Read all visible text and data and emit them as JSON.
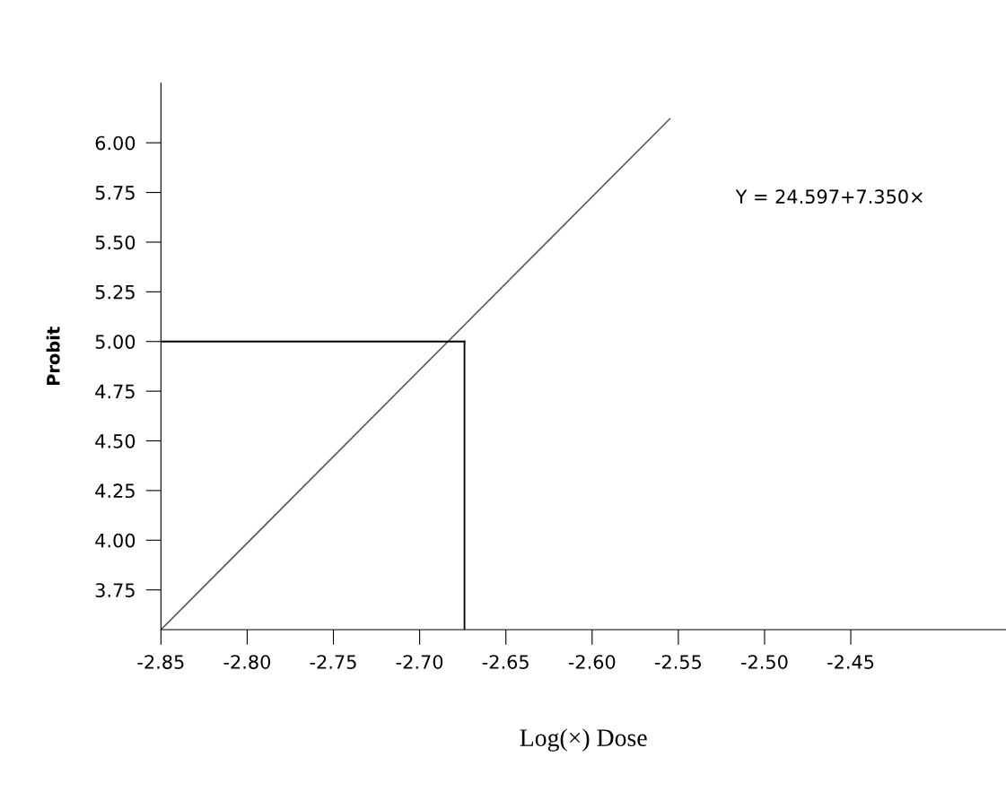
{
  "chart_data": {
    "type": "line",
    "xlabel": "Log(×) Dose",
    "ylabel": "Probit",
    "x": [
      -2.85,
      -2.555
    ],
    "series": [
      {
        "color": "#595959",
        "values": [
          3.55,
          6.12
        ]
      }
    ],
    "xlim": [
      -2.85,
      -2.36
    ],
    "ylim": [
      3.55,
      6.3
    ],
    "xticks": [
      -2.85,
      {
        "value": -2.8,
        "label": "-2.80"
      },
      -2.75,
      {
        "value": -2.7,
        "label": "-2.70"
      },
      -2.65,
      {
        "value": -2.6,
        "label": "-2.60"
      },
      -2.55,
      {
        "value": -2.5,
        "label": "-2.50"
      },
      -2.45
    ],
    "yticks": [
      3.75,
      {
        "value": 4,
        "label": "4.00"
      },
      4.25,
      {
        "value": 4.5,
        "label": "4.50"
      },
      4.75,
      {
        "value": 5,
        "label": "5.00"
      },
      5.25,
      {
        "value": 5.5,
        "label": "5.50"
      },
      5.75,
      {
        "value": 6,
        "label": "6.00"
      }
    ],
    "ref_lines": [
      {
        "axis": "y",
        "value": 5.0,
        "color": "#000000"
      },
      {
        "axis": "x",
        "value": -2.674,
        "color": "#000000"
      }
    ],
    "annotations": [
      "Y = 24.597+7.350×"
    ],
    "grid": false,
    "marker": "none",
    "line_style": "solid"
  }
}
